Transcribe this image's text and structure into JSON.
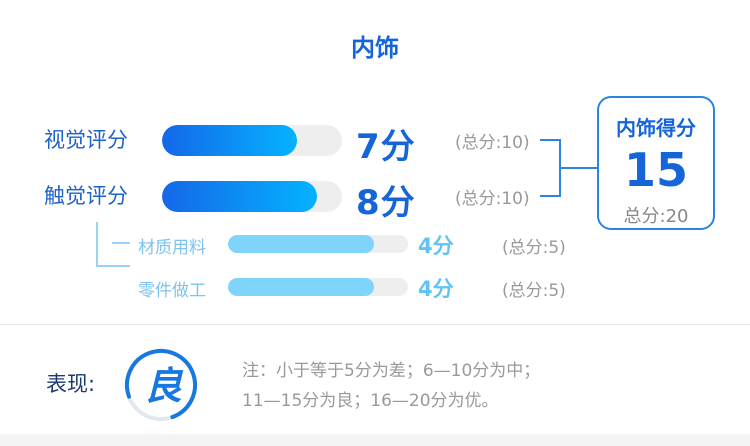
{
  "title": "内饰",
  "categories": [
    {
      "label": "视觉评分",
      "score_text": "7分",
      "total_text": "(总分:10)",
      "fill": 0.7
    },
    {
      "label": "触觉评分",
      "score_text": "8分",
      "total_text": "(总分:10)",
      "fill": 0.8
    }
  ],
  "sub_items": [
    {
      "label": "材质用料",
      "score_text": "4分",
      "total_text": "(总分:5)",
      "fill": 0.8
    },
    {
      "label": "零件做工",
      "score_text": "4分",
      "total_text": "(总分:5)",
      "fill": 0.8
    }
  ],
  "summary": {
    "title": "内饰得分",
    "score": "15",
    "total_text": "总分:20"
  },
  "performance": {
    "label": "表现:",
    "grade": "良",
    "ring_fraction": 0.75,
    "note_line1": "注：小于等于5分为差；6—10分为中；",
    "note_line2": "11—15分为良；16—20分为优。"
  },
  "colors": {
    "primary": "#1565d8",
    "accent": "#04b3ff",
    "sub": "#7fd4fb",
    "muted": "#999999"
  }
}
